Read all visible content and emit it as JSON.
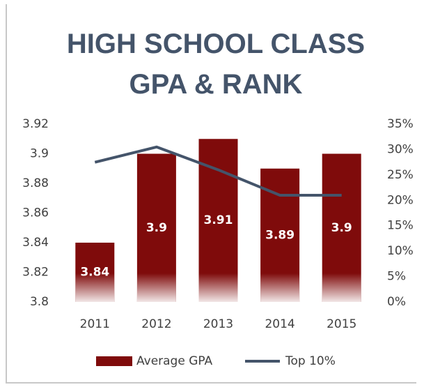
{
  "chart_data": {
    "type": "bar",
    "title": "HIGH SCHOOL CLASS GPA & RANK",
    "categories": [
      "2011",
      "2012",
      "2013",
      "2014",
      "2015"
    ],
    "series": [
      {
        "name": "Average GPA",
        "type": "bar",
        "color": "#7f0b0b",
        "values": [
          3.84,
          3.9,
          3.91,
          3.89,
          3.9
        ]
      },
      {
        "name": "Top 10%",
        "type": "line",
        "axis": "y2",
        "color": "#44546a",
        "values": [
          27.5,
          30.5,
          26,
          21,
          21
        ]
      }
    ],
    "ylim": [
      3.8,
      3.92
    ],
    "yticks": [
      3.8,
      3.82,
      3.84,
      3.86,
      3.88,
      3.9,
      3.92
    ],
    "y2lim": [
      0,
      35
    ],
    "y2ticks": [
      {
        "value": 0,
        "label": "0%"
      },
      {
        "value": 5,
        "label": "5%"
      },
      {
        "value": 10,
        "label": "10%"
      },
      {
        "value": 15,
        "label": "15%"
      },
      {
        "value": 20,
        "label": "20%"
      },
      {
        "value": 25,
        "label": "25%"
      },
      {
        "value": 30,
        "label": "30%"
      },
      {
        "value": 35,
        "label": "35%"
      }
    ],
    "grid": false,
    "legend": "bottom"
  }
}
